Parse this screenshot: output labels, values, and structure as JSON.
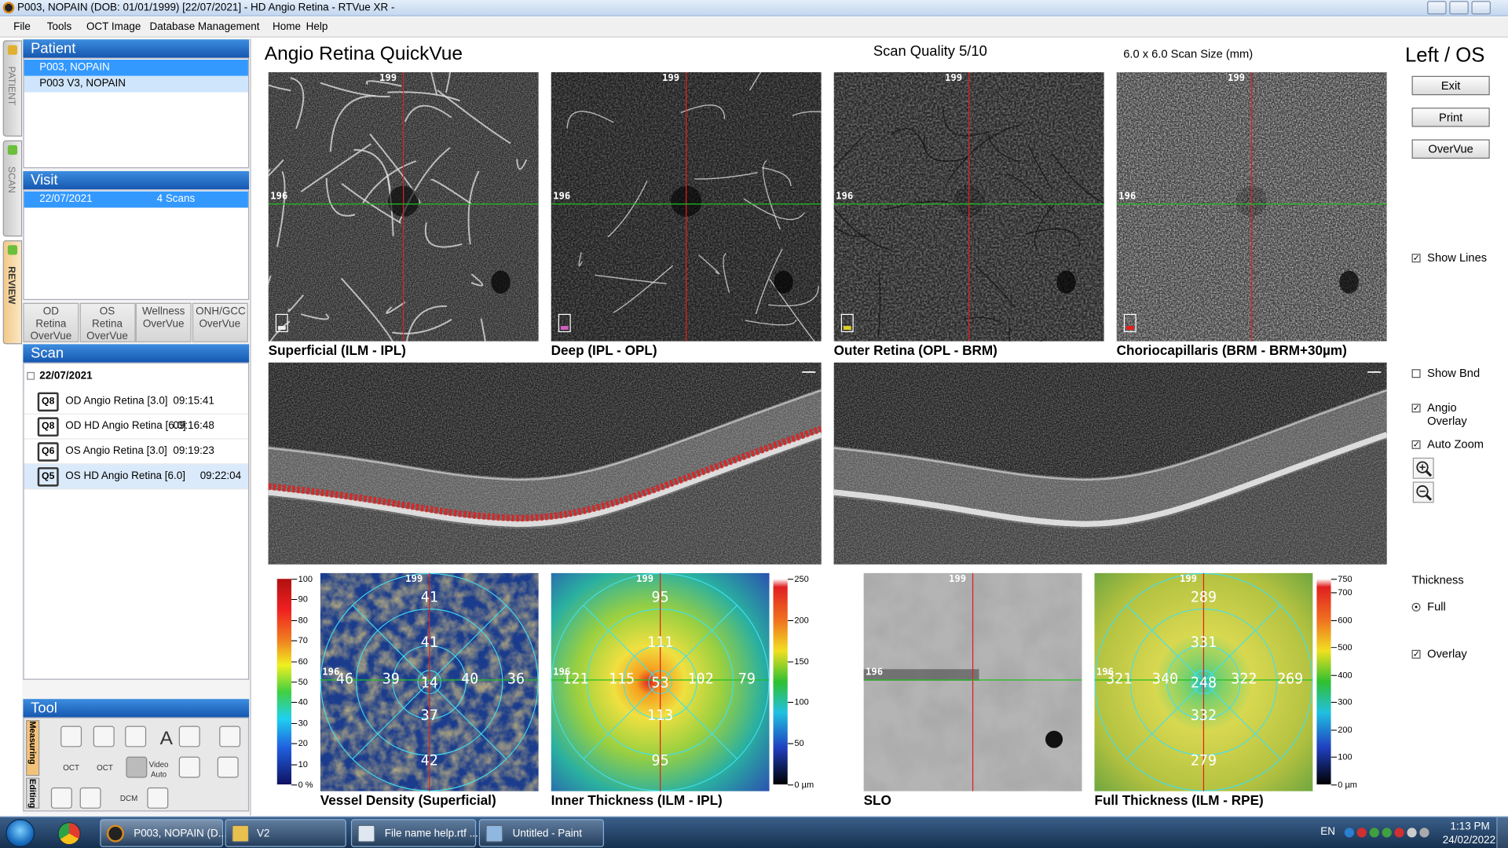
{
  "window": {
    "title": "P003, NOPAIN  (DOB: 01/01/1999)  [22/07/2021] - HD Angio Retina - RTVue XR -"
  },
  "menu": [
    "File",
    "Tools",
    "OCT Image",
    "Database Management",
    "Home",
    "Help"
  ],
  "side_tabs": [
    "PATIENT",
    "SCAN",
    "REVIEW"
  ],
  "patient": {
    "title": "Patient",
    "items": [
      "P003, NOPAIN",
      "P003 V3, NOPAIN"
    ]
  },
  "visit": {
    "title": "Visit",
    "date": "22/07/2021",
    "scans": "4 Scans"
  },
  "report_tabs": [
    "OD Retina OverVue",
    "OS Retina OverVue",
    "Wellness OverVue",
    "ONH/GCC OverVue"
  ],
  "scan": {
    "title": "Scan",
    "date": "22/07/2021",
    "items": [
      {
        "badge": "Q8",
        "name": "OD Angio Retina [3.0]",
        "time": "09:15:41"
      },
      {
        "badge": "Q8",
        "name": "OD HD Angio Retina [6.0]",
        "time": "09:16:48"
      },
      {
        "badge": "Q6",
        "name": "OS Angio Retina [3.0]",
        "time": "09:19:23"
      },
      {
        "badge": "Q5",
        "name": "OS HD Angio Retina [6.0]",
        "time": "09:22:04"
      }
    ]
  },
  "tool": {
    "title": "Tool",
    "tabs": [
      "Measuring",
      "Editing"
    ],
    "icons": [
      "A",
      "OCT",
      "OCT",
      "Video Auto",
      "DCM"
    ]
  },
  "header": {
    "title": "Angio Retina QuickVue",
    "scan_quality": "Scan Quality 5/10",
    "scan_size": "6.0 x 6.0 Scan Size (mm)",
    "eye": "Left / OS"
  },
  "buttons": [
    "Exit",
    "Print",
    "OverVue"
  ],
  "options": {
    "show_lines": "Show Lines",
    "show_bnd": "Show Bnd",
    "angio_overlay": "Angio Overlay",
    "auto_zoom": "Auto Zoom",
    "thickness": "Thickness",
    "full": "Full",
    "overlay": "Overlay"
  },
  "angio": [
    {
      "label": "Superficial (ILM - IPL)",
      "top": 199,
      "left": 196
    },
    {
      "label": "Deep (IPL - OPL)",
      "top": 199,
      "left": 196
    },
    {
      "label": "Outer Retina (OPL - BRM)",
      "top": 199,
      "left": 196
    },
    {
      "label": "Choriocapillaris (BRM - BRM+30µm)",
      "top": 199,
      "left": 196
    }
  ],
  "maps": [
    {
      "label": "Vessel Density (Superficial)",
      "top": 199,
      "left": 196,
      "scale": [
        100,
        90,
        80,
        70,
        60,
        50,
        40,
        30,
        20,
        10,
        {
          "value": 0,
          "label": "0 %"
        }
      ],
      "values": [
        41,
        41,
        46,
        39,
        14,
        40,
        36,
        37,
        42
      ]
    },
    {
      "label": "Inner Thickness (ILM - IPL)",
      "top": 199,
      "left": 196,
      "scale": [
        250,
        200,
        150,
        100,
        50,
        {
          "value": 0,
          "label": "0 µm"
        }
      ],
      "values": [
        95,
        111,
        121,
        115,
        53,
        102,
        79,
        113,
        95
      ]
    },
    {
      "label": "SLO",
      "top": 199,
      "left": 196
    },
    {
      "label": "Full Thickness (ILM - RPE)",
      "top": 199,
      "left": 196,
      "scale": [
        750,
        700,
        600,
        500,
        400,
        300,
        200,
        100,
        {
          "value": 0,
          "label": "0 µm"
        }
      ],
      "values": [
        289,
        331,
        321,
        340,
        248,
        322,
        269,
        332,
        279
      ]
    }
  ],
  "taskbar": {
    "items": [
      "P003, NOPAIN  (D...",
      "V2",
      "File name help.rtf ...",
      "Untitled - Paint"
    ],
    "language": "EN",
    "time": "1:13 PM",
    "date": "24/02/2022"
  }
}
